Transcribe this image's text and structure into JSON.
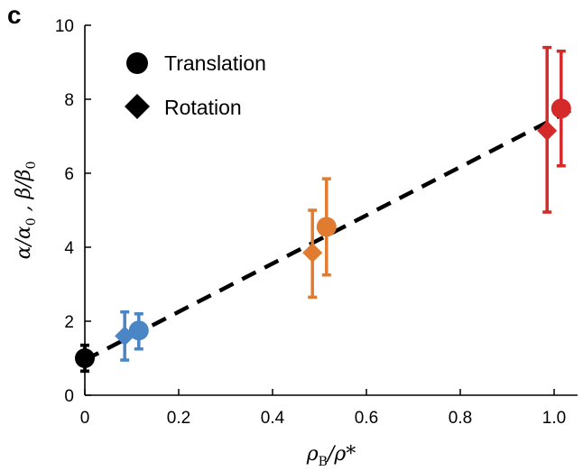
{
  "panel_label": "c",
  "chart_data": {
    "type": "scatter",
    "xlabel": "ρB/ρ*",
    "xlabel_main": "ρ",
    "xlabel_sub": "B",
    "xlabel_rest": "/ρ*",
    "ylabel": "α/α0 , β/β0",
    "ylabel_a": "α/α",
    "ylabel_a_sub": "0",
    "ylabel_mid": " , β/β",
    "ylabel_b_sub": "0",
    "xlim": [
      0,
      1.05
    ],
    "ylim": [
      0,
      10
    ],
    "xticks": [
      0,
      0.2,
      0.4,
      0.6,
      0.8,
      1.0
    ],
    "xtick_labels": [
      "0",
      "0.2",
      "0.4",
      "0.6",
      "0.8",
      "1.0"
    ],
    "yticks": [
      0,
      2,
      4,
      6,
      8,
      10
    ],
    "ytick_labels": [
      "0",
      "2",
      "4",
      "6",
      "8",
      "10"
    ],
    "grid": false,
    "legend_position": "top-left",
    "legend": [
      {
        "name": "Translation",
        "marker": "circle"
      },
      {
        "name": "Rotation",
        "marker": "diamond"
      }
    ],
    "series": [
      {
        "name": "Translation",
        "marker": "circle",
        "points": [
          {
            "x": 0.0,
            "y": 1.0,
            "ylo": 0.65,
            "yhi": 1.35,
            "color": "#000000"
          },
          {
            "x": 0.115,
            "y": 1.75,
            "ylo": 1.25,
            "yhi": 2.2,
            "color": "#4a86c5"
          },
          {
            "x": 0.515,
            "y": 4.55,
            "ylo": 3.25,
            "yhi": 5.85,
            "color": "#e07b30"
          },
          {
            "x": 1.015,
            "y": 7.75,
            "ylo": 6.2,
            "yhi": 9.3,
            "color": "#d42a2a"
          }
        ]
      },
      {
        "name": "Rotation",
        "marker": "diamond",
        "points": [
          {
            "x": 0.0,
            "y": 1.0,
            "ylo": 0.65,
            "yhi": 1.35,
            "color": "#000000"
          },
          {
            "x": 0.085,
            "y": 1.6,
            "ylo": 0.95,
            "yhi": 2.25,
            "color": "#4a86c5"
          },
          {
            "x": 0.485,
            "y": 3.85,
            "ylo": 2.65,
            "yhi": 5.0,
            "color": "#e07b30"
          },
          {
            "x": 0.985,
            "y": 7.15,
            "ylo": 4.95,
            "yhi": 9.4,
            "color": "#d42a2a"
          }
        ]
      }
    ],
    "fit_line": {
      "style": "dashed",
      "color": "#000000",
      "x": [
        0,
        1.05
      ],
      "y": [
        0.95,
        7.8
      ]
    }
  }
}
